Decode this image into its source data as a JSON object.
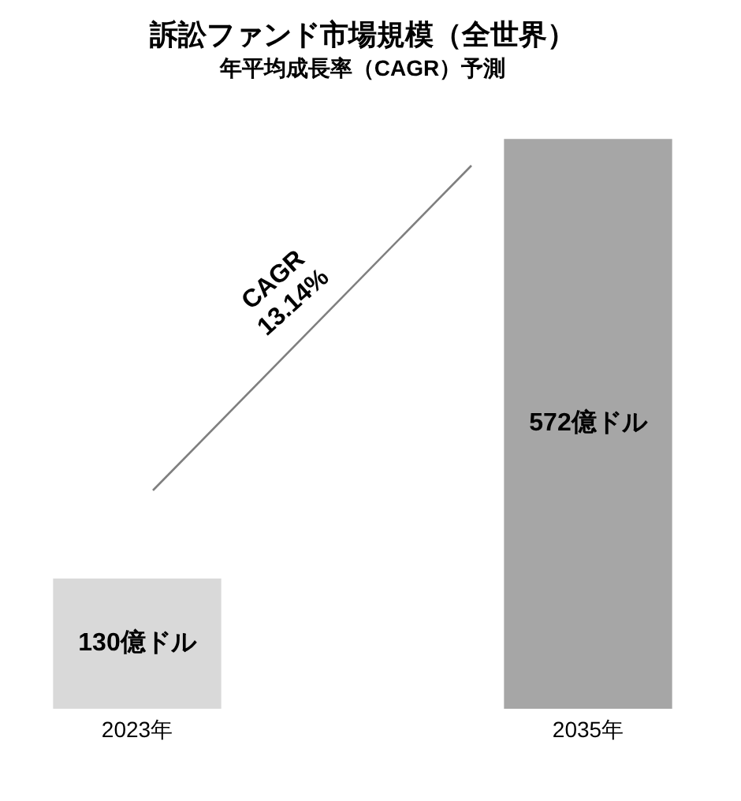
{
  "chart_data": {
    "type": "bar",
    "title": "訴訟ファンド市場規模（全世界）",
    "subtitle": "年平均成長率（CAGR）予測",
    "categories": [
      "2023年",
      "2035年"
    ],
    "values": [
      130,
      572
    ],
    "colors": [
      "#d9d9d9",
      "#a6a6a6"
    ],
    "value_labels": [
      "130億ドル",
      "572億ドル"
    ],
    "annotations": [
      "CAGR 13.14%"
    ],
    "grid": false,
    "legend": false
  }
}
